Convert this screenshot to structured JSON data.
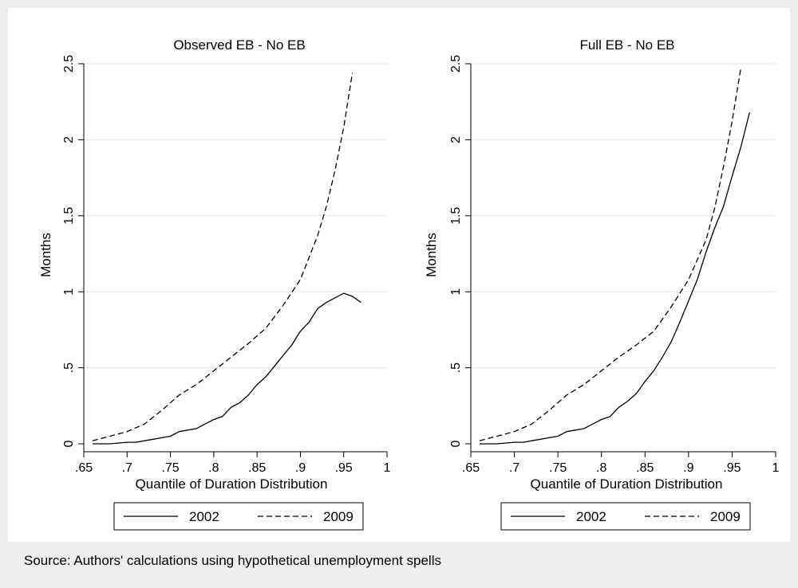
{
  "footnote": "Source: Authors' calculations using hypothetical unemployment spells",
  "chart_data": [
    {
      "type": "line",
      "title": "Observed EB - No EB",
      "xlabel": "Quantile of Duration Distribution",
      "ylabel": "Months",
      "xlim": [
        0.65,
        1.0
      ],
      "ylim": [
        0,
        2.5
      ],
      "xticks": [
        0.65,
        0.7,
        0.75,
        0.8,
        0.85,
        0.9,
        0.95,
        1.0
      ],
      "xtick_labels": [
        ".65",
        ".7",
        ".75",
        ".8",
        ".85",
        ".9",
        ".95",
        "1"
      ],
      "yticks": [
        0,
        0.5,
        1,
        1.5,
        2,
        2.5
      ],
      "ytick_labels": [
        "0",
        ".5",
        "1",
        "1.5",
        "2",
        "2.5"
      ],
      "grid": "horizontal",
      "legend": "bottom",
      "series": [
        {
          "name": "2002",
          "dash": "solid",
          "x": [
            0.66,
            0.68,
            0.7,
            0.71,
            0.72,
            0.73,
            0.74,
            0.75,
            0.76,
            0.77,
            0.78,
            0.79,
            0.8,
            0.81,
            0.82,
            0.83,
            0.84,
            0.85,
            0.86,
            0.87,
            0.88,
            0.89,
            0.9,
            0.91,
            0.92,
            0.93,
            0.94,
            0.95,
            0.96,
            0.97
          ],
          "y": [
            0.0,
            0.0,
            0.01,
            0.01,
            0.02,
            0.03,
            0.04,
            0.05,
            0.08,
            0.09,
            0.1,
            0.13,
            0.16,
            0.18,
            0.24,
            0.27,
            0.32,
            0.39,
            0.44,
            0.51,
            0.58,
            0.65,
            0.74,
            0.8,
            0.89,
            0.93,
            0.96,
            0.99,
            0.97,
            0.93
          ]
        },
        {
          "name": "2009",
          "dash": "dashed",
          "x": [
            0.66,
            0.68,
            0.7,
            0.72,
            0.74,
            0.76,
            0.78,
            0.8,
            0.82,
            0.84,
            0.86,
            0.88,
            0.9,
            0.92,
            0.93,
            0.94,
            0.95,
            0.96
          ],
          "y": [
            0.02,
            0.05,
            0.08,
            0.13,
            0.22,
            0.32,
            0.39,
            0.48,
            0.57,
            0.66,
            0.76,
            0.91,
            1.08,
            1.37,
            1.56,
            1.8,
            2.08,
            2.44
          ]
        }
      ]
    },
    {
      "type": "line",
      "title": "Full EB - No EB",
      "xlabel": "Quantile of Duration Distribution",
      "ylabel": "Months",
      "xlim": [
        0.65,
        1.0
      ],
      "ylim": [
        0,
        2.5
      ],
      "xticks": [
        0.65,
        0.7,
        0.75,
        0.8,
        0.85,
        0.9,
        0.95,
        1.0
      ],
      "xtick_labels": [
        ".65",
        ".7",
        ".75",
        ".8",
        ".85",
        ".9",
        ".95",
        "1"
      ],
      "yticks": [
        0,
        0.5,
        1,
        1.5,
        2,
        2.5
      ],
      "ytick_labels": [
        "0",
        ".5",
        "1",
        "1.5",
        "2",
        "2.5"
      ],
      "grid": "horizontal",
      "legend": "bottom",
      "series": [
        {
          "name": "2002",
          "dash": "solid",
          "x": [
            0.66,
            0.68,
            0.7,
            0.71,
            0.72,
            0.73,
            0.74,
            0.75,
            0.76,
            0.77,
            0.78,
            0.79,
            0.8,
            0.81,
            0.82,
            0.83,
            0.84,
            0.85,
            0.86,
            0.87,
            0.88,
            0.89,
            0.9,
            0.91,
            0.92,
            0.93,
            0.94,
            0.95,
            0.96,
            0.97
          ],
          "y": [
            0.0,
            0.0,
            0.01,
            0.01,
            0.02,
            0.03,
            0.04,
            0.05,
            0.08,
            0.09,
            0.1,
            0.13,
            0.16,
            0.18,
            0.24,
            0.28,
            0.33,
            0.41,
            0.48,
            0.57,
            0.67,
            0.8,
            0.94,
            1.08,
            1.26,
            1.42,
            1.56,
            1.76,
            1.95,
            2.18
          ]
        },
        {
          "name": "2009",
          "dash": "dashed",
          "x": [
            0.66,
            0.68,
            0.7,
            0.72,
            0.74,
            0.76,
            0.78,
            0.8,
            0.82,
            0.84,
            0.86,
            0.88,
            0.9,
            0.92,
            0.93,
            0.94,
            0.95,
            0.96
          ],
          "y": [
            0.02,
            0.05,
            0.08,
            0.13,
            0.22,
            0.32,
            0.39,
            0.48,
            0.57,
            0.65,
            0.74,
            0.9,
            1.08,
            1.34,
            1.55,
            1.82,
            2.12,
            2.47
          ]
        }
      ]
    }
  ]
}
